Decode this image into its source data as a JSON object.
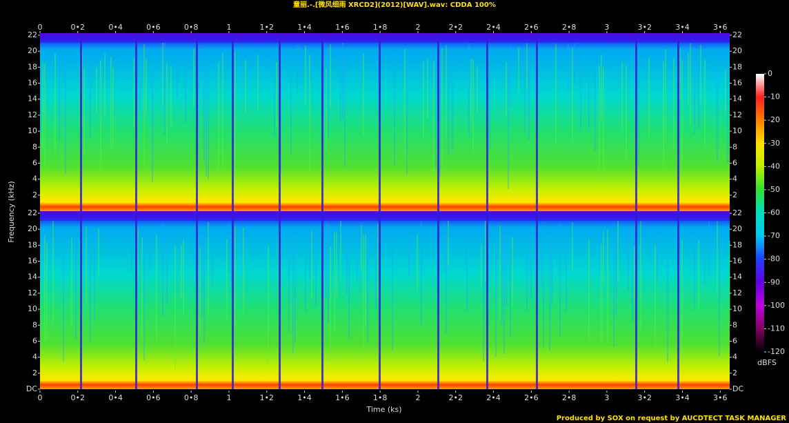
{
  "chart_data": {
    "type": "spectrogram",
    "title": "童丽.-.[微风细雨 XRCD2](2012)[WAV].wav: CDDA 100%",
    "x_label": "Time (ks)",
    "y_label": "Frequency (kHz)",
    "xlim": [
      0,
      3.65
    ],
    "xticks": [
      0,
      {
        "value": 0.2,
        "label": "0•2"
      },
      {
        "value": 0.4,
        "label": "0•4"
      },
      {
        "value": 0.6,
        "label": "0•6"
      },
      {
        "value": 0.8,
        "label": "0•8"
      },
      1,
      {
        "value": 1.2,
        "label": "1•2"
      },
      {
        "value": 1.4,
        "label": "1•4"
      },
      {
        "value": 1.6,
        "label": "1•6"
      },
      {
        "value": 1.8,
        "label": "1•8"
      },
      2,
      {
        "value": 2.2,
        "label": "2•2"
      },
      {
        "value": 2.4,
        "label": "2•4"
      },
      {
        "value": 2.6,
        "label": "2•6"
      },
      {
        "value": 2.8,
        "label": "2•8"
      },
      3,
      {
        "value": 3.2,
        "label": "3•2"
      },
      {
        "value": 3.4,
        "label": "3•4"
      },
      {
        "value": 3.6,
        "label": "3•6"
      }
    ],
    "channels": [
      {
        "ylim": [
          0,
          22
        ],
        "yticks": [
          2,
          4,
          6,
          8,
          10,
          12,
          14,
          16,
          18,
          20,
          22
        ]
      },
      {
        "ylim": [
          0,
          22
        ],
        "yticks": [
          {
            "value": 0,
            "label": "DC"
          },
          2,
          4,
          6,
          8,
          10,
          12,
          14,
          16,
          18,
          20,
          22
        ]
      }
    ],
    "colorbar": {
      "label": "dBFS",
      "lim": [
        -120,
        0
      ],
      "ticks": [
        0,
        -10,
        -20,
        -30,
        -40,
        -50,
        -60,
        -70,
        -80,
        -90,
        -100,
        -110,
        -120
      ],
      "colors": [
        "#ffffff",
        "#ff2020",
        "#ff8000",
        "#ffe000",
        "#c0f000",
        "#30e030",
        "#00e0c0",
        "#00c8f0",
        "#2040ff",
        "#6000e0",
        "#c000e0",
        "#800060",
        "#000000"
      ]
    },
    "footer": "Produced by SOX on request by AUCDTECT TASK MANAGER"
  }
}
